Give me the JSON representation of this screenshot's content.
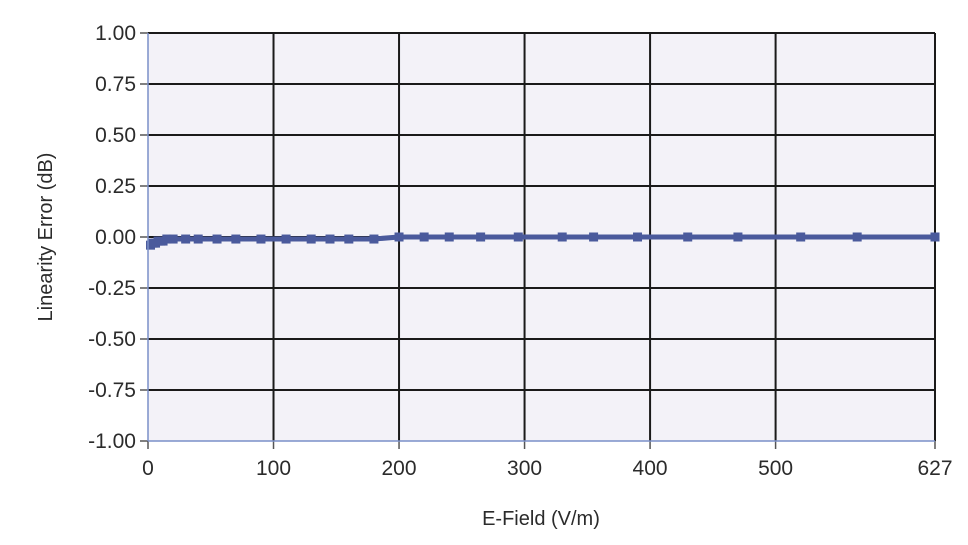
{
  "chart_data": {
    "type": "line",
    "title": "",
    "xlabel": "E-Field (V/m)",
    "ylabel": "Linearity Error (dB)",
    "xlim": [
      0,
      627
    ],
    "ylim": [
      -1.0,
      1.0
    ],
    "x_ticks": [
      0,
      100,
      200,
      300,
      400,
      500,
      627
    ],
    "x_tick_labels": [
      "0",
      "100",
      "200",
      "300",
      "400",
      "500",
      "627"
    ],
    "y_ticks": [
      1.0,
      0.75,
      0.5,
      0.25,
      0.0,
      -0.25,
      -0.5,
      -0.75,
      -1.0
    ],
    "y_tick_labels": [
      "1.00",
      "0.75",
      "0.50",
      "0.25",
      "0.00",
      "-0.25",
      "-0.50",
      "-0.75",
      "-1.00"
    ],
    "grid": true,
    "colors": {
      "background": "#f3f2f8",
      "grid": "#1a1a1a",
      "series": "#4a5a9c"
    },
    "series": [
      {
        "x": [
          2,
          4,
          6,
          8,
          10,
          12,
          15,
          20,
          30,
          40,
          55,
          70,
          90,
          110,
          130,
          145,
          160,
          180,
          200,
          220,
          240,
          265,
          295,
          330,
          355,
          390,
          430,
          470,
          520,
          565,
          627
        ],
        "y": [
          -0.04,
          -0.03,
          -0.03,
          -0.02,
          -0.02,
          -0.02,
          -0.01,
          -0.01,
          -0.01,
          -0.01,
          -0.01,
          -0.01,
          -0.01,
          -0.01,
          -0.01,
          -0.01,
          -0.01,
          -0.01,
          0.0,
          0.0,
          0.0,
          0.0,
          0.0,
          0.0,
          0.0,
          0.0,
          0.0,
          0.0,
          0.0,
          0.0,
          0.0
        ],
        "error": [
          0.02,
          0.02,
          0.02,
          0.02,
          0.02,
          0.02,
          0.02,
          0.02,
          0.02,
          0.02,
          0.02,
          0.02,
          0.02,
          0.02,
          0.02,
          0.02,
          0.02,
          0.02,
          0.02,
          0.02,
          0.02,
          0.02,
          0.02,
          0.02,
          0.02,
          0.02,
          0.02,
          0.02,
          0.02,
          0.02,
          0.02
        ]
      }
    ]
  }
}
